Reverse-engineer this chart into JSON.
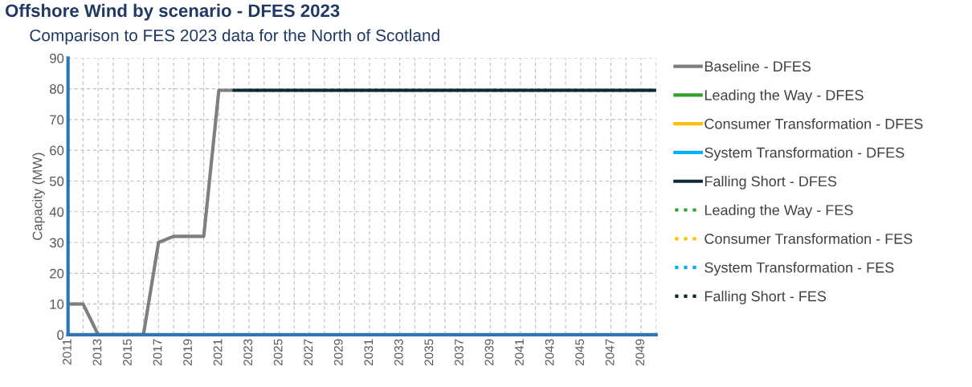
{
  "chart_data": {
    "type": "line",
    "title": "Offshore Wind by scenario - DFES 2023",
    "subtitle": "Comparison to FES 2023 data for the North of Scotland",
    "ylabel": "Capacity (MW)",
    "categories": [
      "2011",
      null,
      "2013",
      null,
      "2015",
      null,
      "2017",
      null,
      "2019",
      null,
      "2021",
      null,
      "2023",
      null,
      "2025",
      null,
      "2027",
      null,
      "2029",
      null,
      "2031",
      null,
      "2033",
      null,
      "2035",
      null,
      "2037",
      null,
      "2039",
      null,
      "2041",
      null,
      "2043",
      null,
      "2045",
      null,
      "2047",
      null,
      "2049",
      null
    ],
    "ylim": [
      0,
      90
    ],
    "yticks": [
      0,
      10,
      20,
      30,
      40,
      50,
      60,
      70,
      80,
      90
    ],
    "grid": true,
    "legend": "right",
    "marker": "none",
    "series": [
      {
        "name": "Baseline - DFES",
        "color": "#7f7f7f",
        "line_style": "solid",
        "values": [
          10,
          10,
          0,
          0,
          0,
          0,
          30,
          32,
          32,
          32,
          79.5,
          79.5,
          null,
          null,
          null,
          null,
          null,
          null,
          null,
          null,
          null,
          null,
          null,
          null,
          null,
          null,
          null,
          null,
          null,
          null,
          null,
          null,
          null,
          null,
          null,
          null,
          null,
          null,
          null,
          null
        ]
      },
      {
        "name": "Leading the Way - DFES",
        "color": "#33a02c",
        "line_style": "solid",
        "values": [
          null,
          null,
          null,
          null,
          null,
          null,
          null,
          null,
          null,
          null,
          null,
          null,
          null,
          null,
          null,
          null,
          null,
          null,
          null,
          null,
          null,
          null,
          null,
          null,
          null,
          null,
          null,
          null,
          null,
          null,
          null,
          null,
          null,
          null,
          null,
          null,
          null,
          null,
          null,
          null
        ]
      },
      {
        "name": "Consumer Transformation - DFES",
        "color": "#ffc000",
        "line_style": "solid",
        "values": [
          null,
          null,
          null,
          null,
          null,
          null,
          null,
          null,
          null,
          null,
          null,
          null,
          null,
          null,
          null,
          null,
          null,
          null,
          null,
          null,
          null,
          null,
          null,
          null,
          null,
          null,
          null,
          null,
          null,
          null,
          null,
          null,
          null,
          null,
          null,
          null,
          null,
          null,
          null,
          null
        ]
      },
      {
        "name": "System Transformation - DFES",
        "color": "#00b0f0",
        "line_style": "solid",
        "values": [
          null,
          null,
          null,
          null,
          null,
          null,
          null,
          null,
          null,
          null,
          null,
          null,
          null,
          null,
          null,
          null,
          null,
          null,
          null,
          null,
          null,
          null,
          null,
          null,
          null,
          null,
          null,
          null,
          null,
          null,
          null,
          null,
          null,
          null,
          null,
          null,
          null,
          null,
          null,
          null
        ]
      },
      {
        "name": "Falling Short - DFES",
        "color": "#0b2a33",
        "line_style": "solid",
        "values": [
          null,
          null,
          null,
          null,
          null,
          null,
          null,
          null,
          null,
          null,
          null,
          79.5,
          79.5,
          79.5,
          79.5,
          79.5,
          79.5,
          79.5,
          79.5,
          79.5,
          79.5,
          79.5,
          79.5,
          79.5,
          79.5,
          79.5,
          79.5,
          79.5,
          79.5,
          79.5,
          79.5,
          79.5,
          79.5,
          79.5,
          79.5,
          79.5,
          79.5,
          79.5,
          79.5,
          79.5
        ]
      },
      {
        "name": "Leading the Way - FES",
        "color": "#33a02c",
        "line_style": "dotted",
        "values": [
          null,
          null,
          null,
          null,
          null,
          null,
          null,
          null,
          null,
          null,
          null,
          null,
          null,
          null,
          null,
          null,
          null,
          null,
          null,
          null,
          null,
          null,
          null,
          null,
          null,
          null,
          null,
          null,
          null,
          null,
          null,
          null,
          null,
          null,
          null,
          null,
          null,
          null,
          null,
          null
        ]
      },
      {
        "name": "Consumer Transformation - FES",
        "color": "#ffc000",
        "line_style": "dotted",
        "values": [
          null,
          null,
          null,
          null,
          null,
          null,
          null,
          null,
          null,
          null,
          null,
          null,
          null,
          null,
          null,
          null,
          null,
          null,
          null,
          null,
          null,
          null,
          null,
          null,
          null,
          null,
          null,
          null,
          null,
          null,
          null,
          null,
          null,
          null,
          null,
          null,
          null,
          null,
          null,
          null
        ]
      },
      {
        "name": "System Transformation - FES",
        "color": "#00b0f0",
        "line_style": "dotted",
        "values": [
          null,
          null,
          null,
          null,
          null,
          null,
          null,
          null,
          null,
          null,
          null,
          null,
          null,
          null,
          null,
          null,
          null,
          null,
          null,
          null,
          null,
          null,
          null,
          null,
          null,
          null,
          null,
          null,
          null,
          null,
          null,
          null,
          null,
          null,
          null,
          null,
          null,
          null,
          null,
          null
        ]
      },
      {
        "name": "Falling Short - FES",
        "color": "#0b2a33",
        "line_style": "dotted",
        "values": [
          null,
          null,
          null,
          null,
          null,
          null,
          null,
          null,
          null,
          null,
          null,
          null,
          79.5,
          79.5,
          79.5,
          79.5,
          79.5,
          79.5,
          79.5,
          79.5,
          79.5,
          79.5,
          79.5,
          79.5,
          79.5,
          79.5,
          79.5,
          79.5,
          79.5,
          79.5,
          79.5,
          79.5,
          79.5,
          79.5,
          79.5,
          79.5,
          79.5,
          79.5,
          79.5,
          79.5
        ]
      }
    ]
  }
}
